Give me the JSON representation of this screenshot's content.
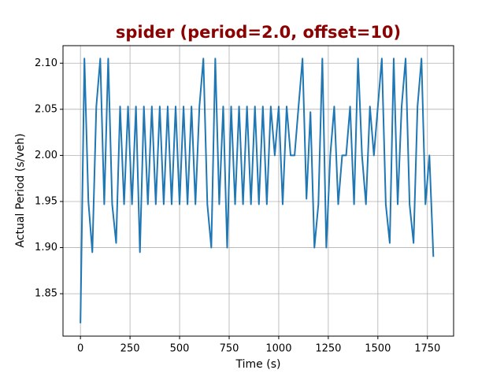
{
  "chart_data": {
    "type": "line",
    "title": "spider (period=2.0, offset=10)",
    "x_label": "Time (s)",
    "y_label": "Actual Period (s/veh)",
    "series": [
      {
        "color": "#1f77b4",
        "x": [
          0,
          20,
          40,
          60,
          80,
          100,
          120,
          140,
          160,
          180,
          200,
          220,
          240,
          260,
          280,
          300,
          320,
          340,
          360,
          380,
          400,
          420,
          440,
          460,
          480,
          500,
          520,
          540,
          560,
          580,
          600,
          620,
          640,
          660,
          680,
          700,
          720,
          740,
          760,
          780,
          800,
          820,
          840,
          860,
          880,
          900,
          920,
          940,
          960,
          980,
          1000,
          1020,
          1040,
          1060,
          1080,
          1100,
          1120,
          1140,
          1160,
          1180,
          1200,
          1220,
          1240,
          1260,
          1280,
          1300,
          1320,
          1340,
          1360,
          1380,
          1400,
          1420,
          1440,
          1460,
          1480,
          1500,
          1520,
          1540,
          1560,
          1580,
          1600,
          1620,
          1640,
          1660,
          1680,
          1700,
          1720,
          1740,
          1760,
          1780
        ],
        "values": [
          1.818,
          2.105,
          1.95,
          1.895,
          2.053,
          2.105,
          1.947,
          2.105,
          1.947,
          1.905,
          2.053,
          1.947,
          2.053,
          1.947,
          2.053,
          1.895,
          2.053,
          1.947,
          2.053,
          1.947,
          2.053,
          1.947,
          2.053,
          1.947,
          2.053,
          1.947,
          2.053,
          1.947,
          2.053,
          1.947,
          2.053,
          2.105,
          1.947,
          1.9,
          2.105,
          1.947,
          2.053,
          1.9,
          2.053,
          1.947,
          2.053,
          1.947,
          2.053,
          1.947,
          2.053,
          1.947,
          2.053,
          1.947,
          2.053,
          2.0,
          2.053,
          1.947,
          2.053,
          2.0,
          2.0,
          2.053,
          2.105,
          1.953,
          2.047,
          1.9,
          1.947,
          2.105,
          1.9,
          2.0,
          2.053,
          1.947,
          2.0,
          2.0,
          2.053,
          1.947,
          2.105,
          2.0,
          1.947,
          2.053,
          2.0,
          2.053,
          2.105,
          1.947,
          1.905,
          2.105,
          1.947,
          2.053,
          2.105,
          1.947,
          1.905,
          2.053,
          2.105,
          1.947,
          2.0,
          1.89
        ]
      }
    ],
    "xlim": [
      -88,
      1882
    ],
    "xticks": [
      0,
      250,
      500,
      750,
      1000,
      1250,
      1500,
      1750
    ],
    "ylim": [
      1.804,
      2.119
    ],
    "yticks": [
      {
        "value": 1.85,
        "label": "1.85"
      },
      {
        "value": 1.9,
        "label": "1.90"
      },
      {
        "value": 1.95,
        "label": "1.95"
      },
      {
        "value": 2.0,
        "label": "2.00"
      },
      {
        "value": 2.05,
        "label": "2.05"
      },
      {
        "value": 2.1,
        "label": "2.10"
      }
    ],
    "grid": true
  }
}
